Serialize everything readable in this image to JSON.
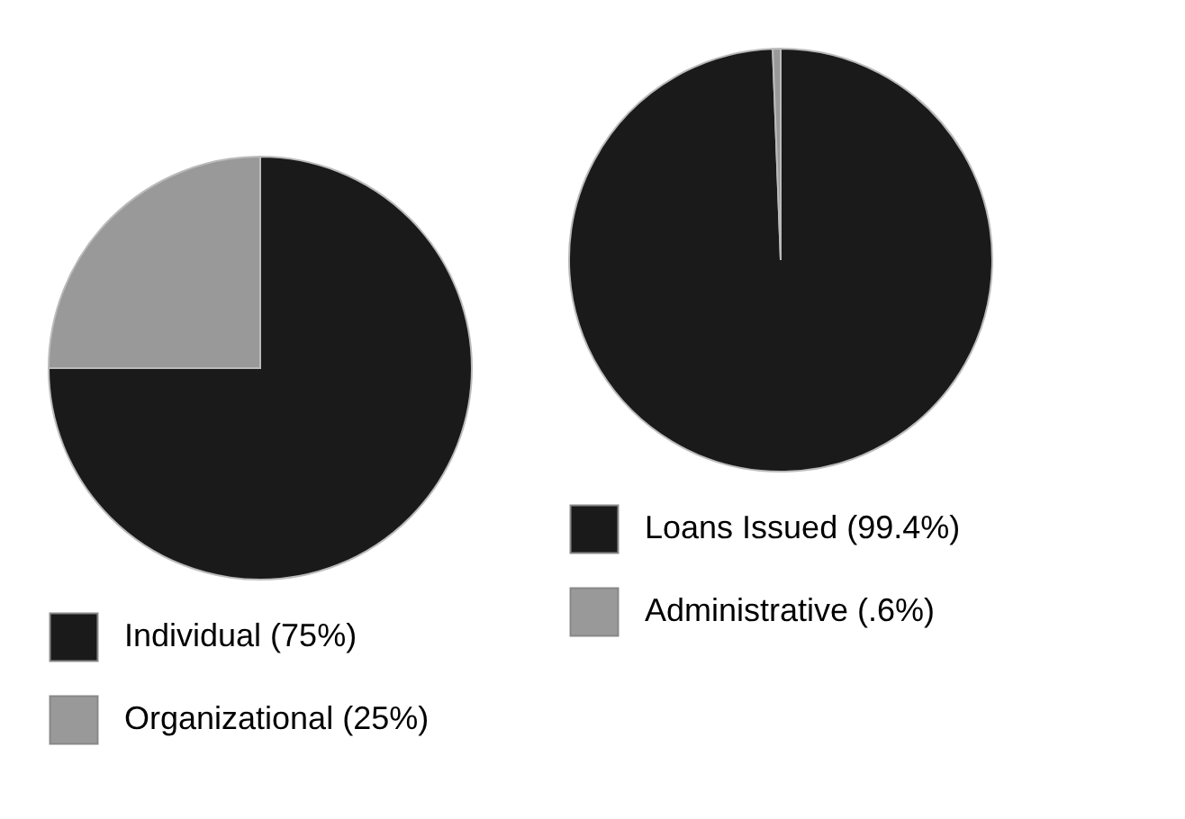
{
  "chart_data": [
    {
      "type": "pie",
      "categories": [
        "Individual (75%)",
        "Organizational (25%)"
      ],
      "values": [
        75,
        25
      ],
      "colors": [
        "#1a1a1a",
        "#999999"
      ],
      "legend": "bottom"
    },
    {
      "type": "pie",
      "categories": [
        "Loans Issued (99.4%)",
        "Administrative (.6%)"
      ],
      "values": [
        99.4,
        0.6
      ],
      "colors": [
        "#1a1a1a",
        "#999999"
      ],
      "legend": "bottom"
    }
  ]
}
